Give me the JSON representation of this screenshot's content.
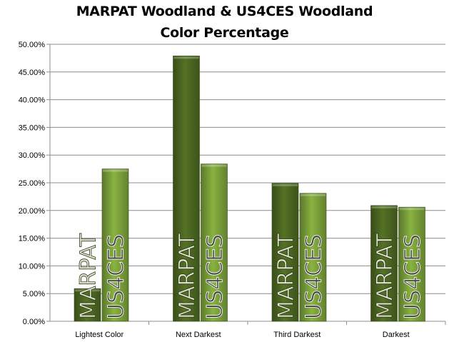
{
  "chart_data": {
    "type": "bar",
    "title": [
      "MARPAT Woodland & US4CES Woodland",
      "Color Percentage"
    ],
    "categories": [
      "Lightest Color",
      "Next Darkest",
      "Third Darkest",
      "Darkest"
    ],
    "series": [
      {
        "name": "MARPAT",
        "values": [
          5.9,
          47.9,
          24.9,
          20.9
        ],
        "color": "#4e6a22"
      },
      {
        "name": "US4CES",
        "values": [
          27.5,
          28.4,
          23.1,
          20.6
        ],
        "color": "#7fa63c"
      }
    ],
    "y_ticks": [
      "0.00%",
      "5.00%",
      "10.00%",
      "15.00%",
      "20.00%",
      "25.00%",
      "30.00%",
      "35.00%",
      "40.00%",
      "45.00%",
      "50.00%"
    ],
    "ylim": [
      0,
      50
    ],
    "grid": true,
    "legend": "none",
    "bar_labels": "series name, rotated vertically inside each bar"
  }
}
